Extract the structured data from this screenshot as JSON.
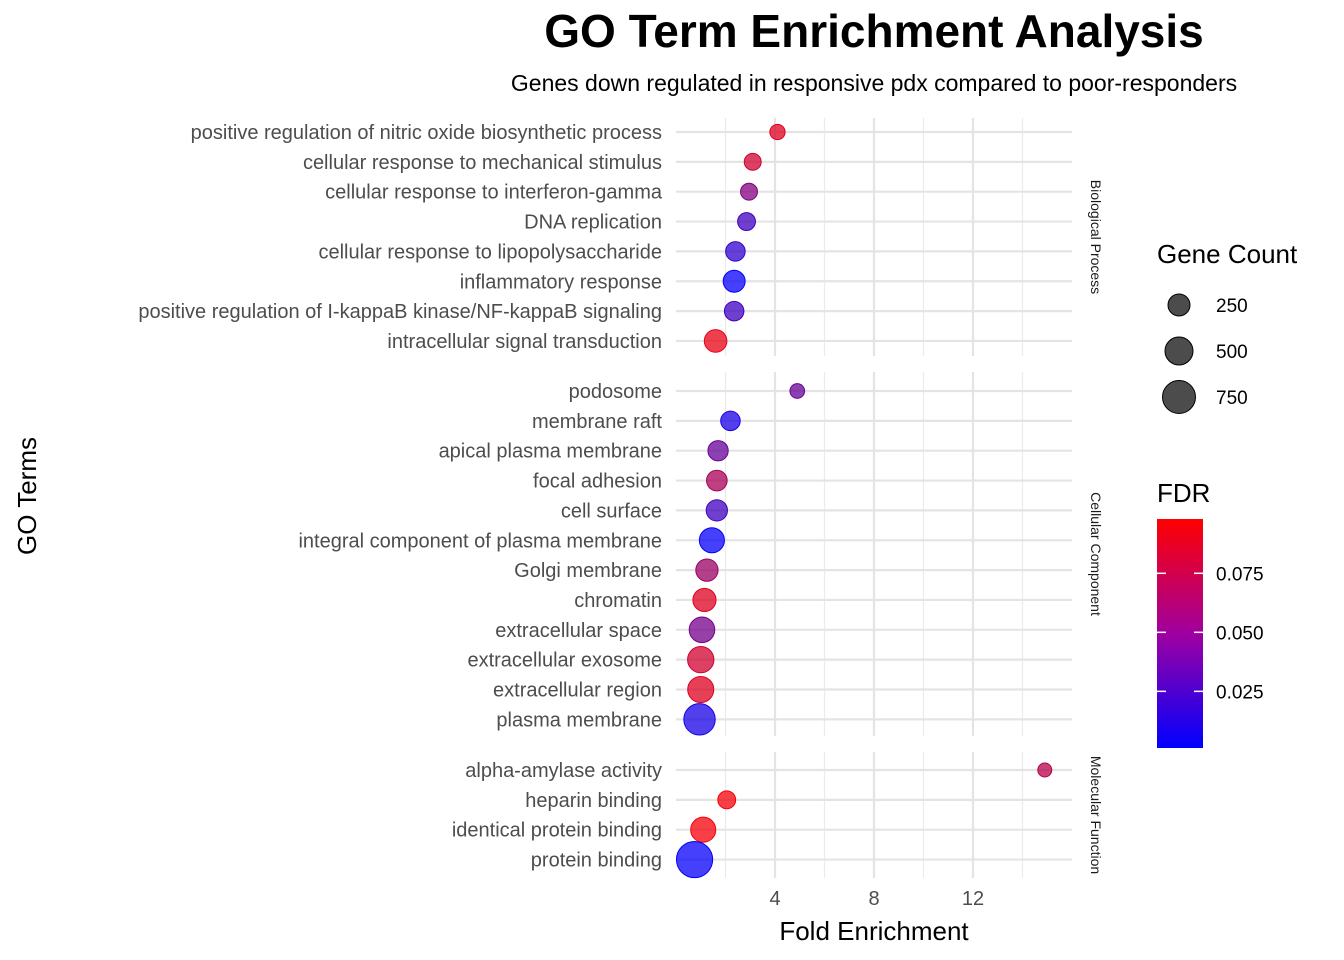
{
  "chart_data": {
    "type": "scatter",
    "title": "GO Term Enrichment Analysis",
    "subtitle": "Genes down regulated in responsive pdx compared to poor-responders",
    "xlabel": "Fold Enrichment",
    "ylabel": "GO Terms",
    "xlim": [
      0,
      16
    ],
    "x_ticks": [
      4,
      8,
      12
    ],
    "x_tick_labels": [
      "4",
      "8",
      "12"
    ],
    "facets": [
      {
        "name": "Biological Process",
        "terms": [
          {
            "term": "positive regulation of nitric oxide biosynthetic process",
            "fold": 4.1,
            "count": 60,
            "fdr": 0.085
          },
          {
            "term": "cellular response to mechanical stimulus",
            "fold": 3.1,
            "count": 90,
            "fdr": 0.08
          },
          {
            "term": "cellular response to interferon-gamma",
            "fold": 2.95,
            "count": 90,
            "fdr": 0.05
          },
          {
            "term": "DNA replication",
            "fold": 2.85,
            "count": 110,
            "fdr": 0.025
          },
          {
            "term": "cellular response to lipopolysaccharide",
            "fold": 2.4,
            "count": 150,
            "fdr": 0.02
          },
          {
            "term": "inflammatory response",
            "fold": 2.35,
            "count": 220,
            "fdr": 0.003
          },
          {
            "term": "positive regulation of I-kappaB kinase/NF-kappaB signaling",
            "fold": 2.35,
            "count": 150,
            "fdr": 0.025
          },
          {
            "term": "intracellular signal transduction",
            "fold": 1.6,
            "count": 240,
            "fdr": 0.09
          }
        ]
      },
      {
        "name": "Cellular Component",
        "terms": [
          {
            "term": "podosome",
            "fold": 4.9,
            "count": 50,
            "fdr": 0.04
          },
          {
            "term": "membrane raft",
            "fold": 2.2,
            "count": 150,
            "fdr": 0.01
          },
          {
            "term": "apical plasma membrane",
            "fold": 1.7,
            "count": 170,
            "fdr": 0.04
          },
          {
            "term": "focal adhesion",
            "fold": 1.65,
            "count": 180,
            "fdr": 0.065
          },
          {
            "term": "cell surface",
            "fold": 1.65,
            "count": 200,
            "fdr": 0.025
          },
          {
            "term": "integral component of plasma membrane",
            "fold": 1.45,
            "count": 330,
            "fdr": 0.003
          },
          {
            "term": "Golgi membrane",
            "fold": 1.25,
            "count": 230,
            "fdr": 0.06
          },
          {
            "term": "chromatin",
            "fold": 1.15,
            "count": 260,
            "fdr": 0.085
          },
          {
            "term": "extracellular space",
            "fold": 1.05,
            "count": 350,
            "fdr": 0.045
          },
          {
            "term": "extracellular exosome",
            "fold": 1.0,
            "count": 380,
            "fdr": 0.08
          },
          {
            "term": "extracellular region",
            "fold": 1.0,
            "count": 370,
            "fdr": 0.085
          },
          {
            "term": "plasma membrane",
            "fold": 0.95,
            "count": 620,
            "fdr": 0.01
          }
        ]
      },
      {
        "name": "Molecular Function",
        "terms": [
          {
            "term": "alpha-amylase activity",
            "fold": 14.9,
            "count": 40,
            "fdr": 0.07
          },
          {
            "term": "heparin binding",
            "fold": 2.05,
            "count": 110,
            "fdr": 0.095
          },
          {
            "term": "identical protein binding",
            "fold": 1.1,
            "count": 330,
            "fdr": 0.095
          },
          {
            "term": "protein binding",
            "fold": 0.75,
            "count": 900,
            "fdr": 0.003
          }
        ]
      }
    ],
    "legend_size": {
      "title": "Gene Count",
      "values": [
        250,
        500,
        750
      ],
      "labels": [
        "250",
        "500",
        "750"
      ]
    },
    "legend_color": {
      "title": "FDR",
      "range": [
        0.001,
        0.098
      ],
      "ticks": [
        0.025,
        0.05,
        0.075
      ],
      "tick_labels": [
        "0.025",
        "0.050",
        "0.075"
      ],
      "low_color": "#0000ff",
      "high_color": "#ff0000"
    }
  }
}
